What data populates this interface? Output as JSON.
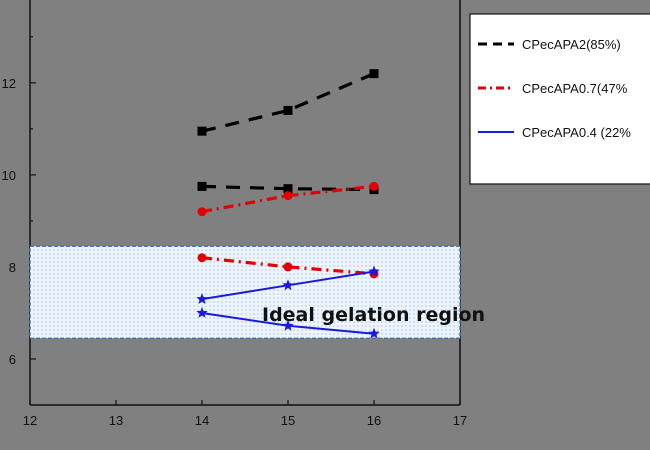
{
  "chart_data": {
    "type": "line",
    "title": "",
    "xlabel": "",
    "ylabel": "",
    "xlim": [
      12,
      17
    ],
    "ylim": [
      5,
      13.8
    ],
    "x_ticks": [
      "12",
      "13",
      "14",
      "15",
      "16",
      "17"
    ],
    "y_ticks": [
      "6",
      "8",
      "10",
      "12"
    ],
    "grid": false,
    "legend_position": "top-right",
    "shaded_region": {
      "y_range": [
        6.45,
        8.45
      ],
      "label": "Ideal gelation region"
    },
    "series": [
      {
        "name": "CPecAPA2(85%)",
        "color": "#000000",
        "style": "dashed",
        "marker": "square",
        "x": [
          14,
          15,
          16
        ],
        "y": [
          10.95,
          11.4,
          12.2
        ]
      },
      {
        "name": "",
        "color": "#000000",
        "style": "dashed",
        "marker": "square",
        "x": [
          14,
          15,
          16
        ],
        "y": [
          9.75,
          9.7,
          9.68
        ]
      },
      {
        "name": "CPecAPA0.7(47%",
        "color": "#e00000",
        "style": "dashdot",
        "marker": "circle",
        "x": [
          14,
          15,
          16
        ],
        "y": [
          9.2,
          9.55,
          9.75
        ]
      },
      {
        "name": "",
        "color": "#e00000",
        "style": "dashdot",
        "marker": "circle",
        "x": [
          14,
          15,
          16
        ],
        "y": [
          8.2,
          8.0,
          7.85
        ]
      },
      {
        "name": "CPecAPA0.4 (22%",
        "color": "#1a1adc",
        "style": "solid",
        "marker": "star",
        "x": [
          14,
          15,
          16
        ],
        "y": [
          7.3,
          7.6,
          7.9
        ]
      },
      {
        "name": "",
        "color": "#1a1adc",
        "style": "solid",
        "marker": "star",
        "x": [
          14,
          15,
          16
        ],
        "y": [
          7.0,
          6.72,
          6.55
        ]
      }
    ],
    "colors": {
      "background": "#808080",
      "legend_bg": "#ffffff",
      "region_fill": "#eef4fb"
    }
  }
}
